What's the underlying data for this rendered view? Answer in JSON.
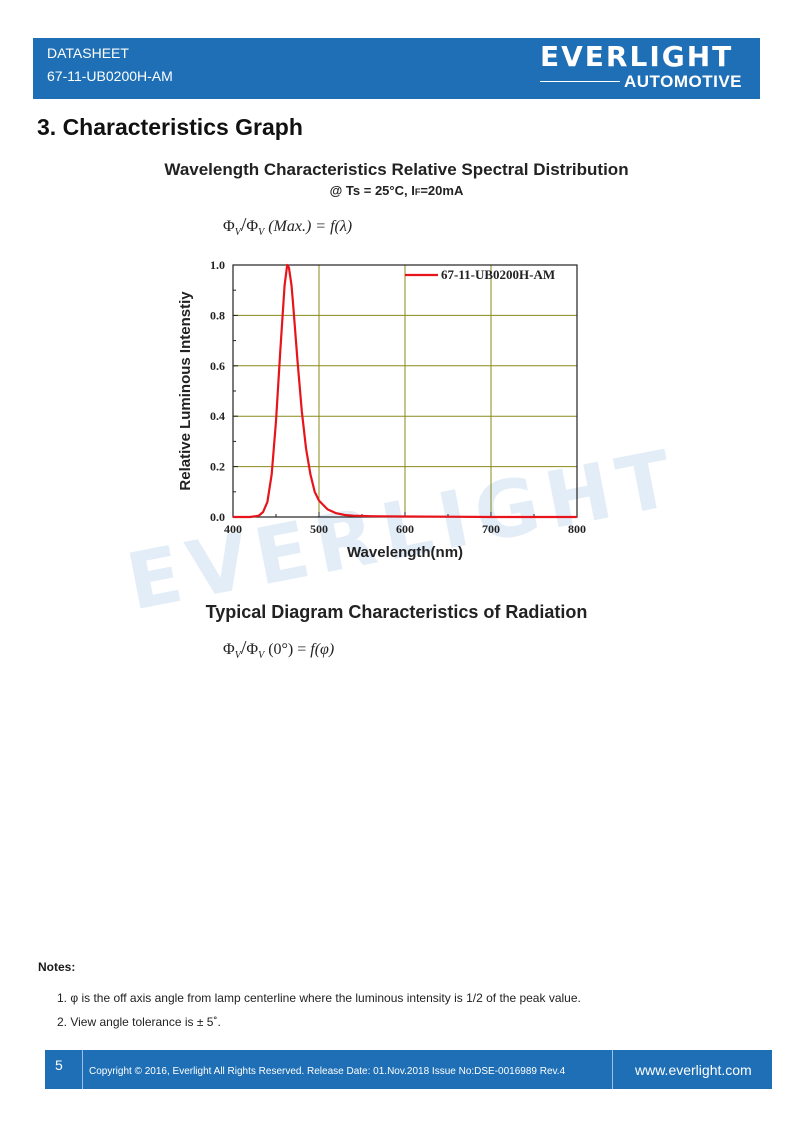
{
  "header": {
    "doc_type": "DATASHEET",
    "part_number": "67-11-UB0200H-AM",
    "logo_main": "EVERLIGHT",
    "logo_sub": "AUTOMOTIVE",
    "color": "#1e6fb5"
  },
  "section_title": "3. Characteristics Graph",
  "spectral": {
    "title": "Wavelength Characteristics Relative Spectral Distribution",
    "subtitle_pre": "@ Ts = 25°C, I",
    "subtitle_sub": "F",
    "subtitle_post": "=20mA",
    "formula": {
      "phi": "Φ",
      "sub_v": "V",
      "slash": "/",
      "max": "(Max.) = ",
      "f": "f",
      "arg": "(λ)"
    }
  },
  "chart_data": {
    "type": "line",
    "xlabel": "Wavelength(nm)",
    "ylabel": "Relative Luminous Intenstiy",
    "xlim": [
      400,
      800
    ],
    "ylim": [
      0.0,
      1.0
    ],
    "x_ticks": [
      "400",
      "500",
      "600",
      "700",
      "800"
    ],
    "y_ticks": [
      "0.0",
      "0.2",
      "0.4",
      "0.6",
      "0.8",
      "1.0"
    ],
    "grid": true,
    "legend_position": "top-right",
    "series": [
      {
        "name": "67-11-UB0200H-AM",
        "color": "#e8141c",
        "x": [
          400,
          420,
          430,
          435,
          440,
          445,
          450,
          455,
          460,
          463,
          465,
          468,
          470,
          475,
          480,
          485,
          490,
          495,
          500,
          510,
          520,
          530,
          540,
          560,
          600,
          650,
          700,
          800
        ],
        "y": [
          0.0,
          0.0,
          0.005,
          0.02,
          0.06,
          0.17,
          0.38,
          0.66,
          0.92,
          1.0,
          0.99,
          0.92,
          0.84,
          0.62,
          0.42,
          0.27,
          0.17,
          0.1,
          0.065,
          0.03,
          0.015,
          0.008,
          0.005,
          0.003,
          0.002,
          0.001,
          0.0,
          0.0
        ]
      }
    ]
  },
  "radiation": {
    "title": "Typical Diagram Characteristics of Radiation",
    "formula": {
      "phi": "Φ",
      "sub_v": "V",
      "slash": "/",
      "zero": "(0°) = ",
      "f": "f",
      "arg": "(φ)"
    }
  },
  "watermark": "EVERLIGHT",
  "notes": {
    "title": "Notes:",
    "items": [
      "1. φ is the off axis angle from lamp centerline where the luminous intensity is 1/2 of the peak value.",
      "2. View angle tolerance is ± 5˚."
    ]
  },
  "footer": {
    "page": "5",
    "copyright": "Copyright © 2016, Everlight All Rights Reserved. Release Date: 01.Nov.2018 Issue No:DSE-0016989 Rev.4",
    "website": "www.everlight.com"
  }
}
